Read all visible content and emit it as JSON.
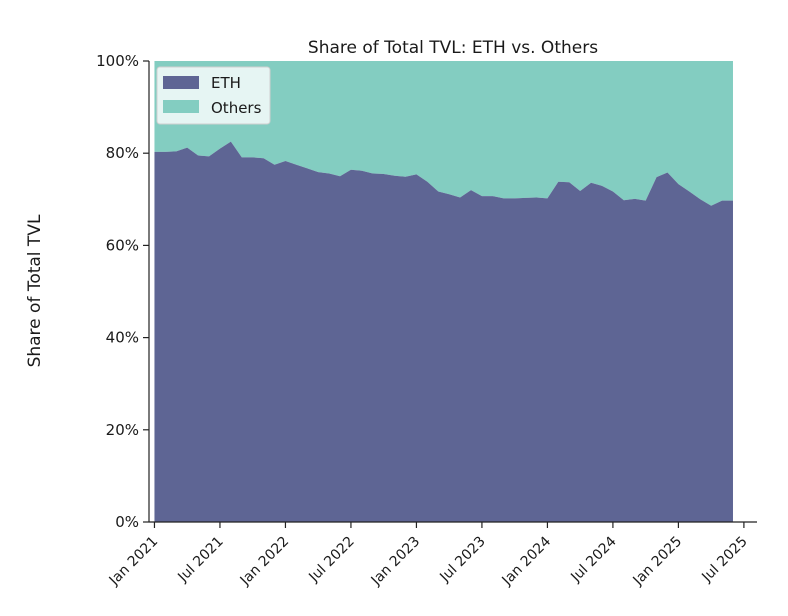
{
  "chart_data": {
    "type": "area",
    "stacked": true,
    "normalized_percent": true,
    "title": "Share of Total TVL: ETH vs. Others",
    "ylabel": "Share of Total TVL",
    "xlabel": "",
    "ylim": [
      0,
      100
    ],
    "yticks": [
      "0%",
      "20%",
      "40%",
      "60%",
      "80%",
      "100%"
    ],
    "xticks": [
      "Jan 2021",
      "Jul 2021",
      "Jan 2022",
      "Jul 2022",
      "Jan 2023",
      "Jul 2023",
      "Jan 2024",
      "Jul 2024",
      "Jan 2025",
      "Jul 2025"
    ],
    "x": [
      "2021-01",
      "2021-02",
      "2021-03",
      "2021-04",
      "2021-05",
      "2021-06",
      "2021-07",
      "2021-08",
      "2021-09",
      "2021-10",
      "2021-11",
      "2021-12",
      "2022-01",
      "2022-02",
      "2022-03",
      "2022-04",
      "2022-05",
      "2022-06",
      "2022-07",
      "2022-08",
      "2022-09",
      "2022-10",
      "2022-11",
      "2022-12",
      "2023-01",
      "2023-02",
      "2023-03",
      "2023-04",
      "2023-05",
      "2023-06",
      "2023-07",
      "2023-08",
      "2023-09",
      "2023-10",
      "2023-11",
      "2023-12",
      "2024-01",
      "2024-02",
      "2024-03",
      "2024-04",
      "2024-05",
      "2024-06",
      "2024-07",
      "2024-08",
      "2024-09",
      "2024-10",
      "2024-11",
      "2024-12",
      "2025-01",
      "2025-02",
      "2025-03",
      "2025-04",
      "2025-05",
      "2025-06"
    ],
    "series": [
      {
        "name": "ETH",
        "color": "#5e6594",
        "values": [
          80.3,
          80.3,
          80.4,
          81.2,
          79.5,
          79.3,
          81.0,
          82.5,
          79.1,
          79.1,
          78.9,
          77.5,
          78.3,
          77.5,
          76.7,
          75.9,
          75.6,
          75.0,
          76.4,
          76.2,
          75.6,
          75.5,
          75.1,
          74.9,
          75.4,
          73.8,
          71.7,
          71.1,
          70.4,
          72.0,
          70.7,
          70.7,
          70.2,
          70.2,
          70.3,
          70.4,
          70.2,
          73.8,
          73.7,
          71.8,
          73.6,
          72.9,
          71.7,
          69.8,
          70.1,
          69.7,
          74.8,
          75.8,
          73.3,
          71.7,
          70.0,
          68.6,
          69.7,
          69.7
        ]
      },
      {
        "name": "Others",
        "color": "#83cdc1",
        "values": [
          19.7,
          19.7,
          19.6,
          18.8,
          20.5,
          20.7,
          19.0,
          17.5,
          20.9,
          20.9,
          21.1,
          22.5,
          21.7,
          22.5,
          23.3,
          24.1,
          24.4,
          25.0,
          23.6,
          23.8,
          24.4,
          24.5,
          24.9,
          25.1,
          24.6,
          26.2,
          28.3,
          28.9,
          29.6,
          28.0,
          29.3,
          29.3,
          29.8,
          29.8,
          29.7,
          29.6,
          29.8,
          26.2,
          26.3,
          28.2,
          26.4,
          27.1,
          28.3,
          30.2,
          29.9,
          30.3,
          25.2,
          24.2,
          26.7,
          28.3,
          30.0,
          31.4,
          30.3,
          30.3
        ]
      }
    ],
    "legend": {
      "position": "top-left",
      "entries": [
        "ETH",
        "Others"
      ]
    },
    "grid": false
  }
}
